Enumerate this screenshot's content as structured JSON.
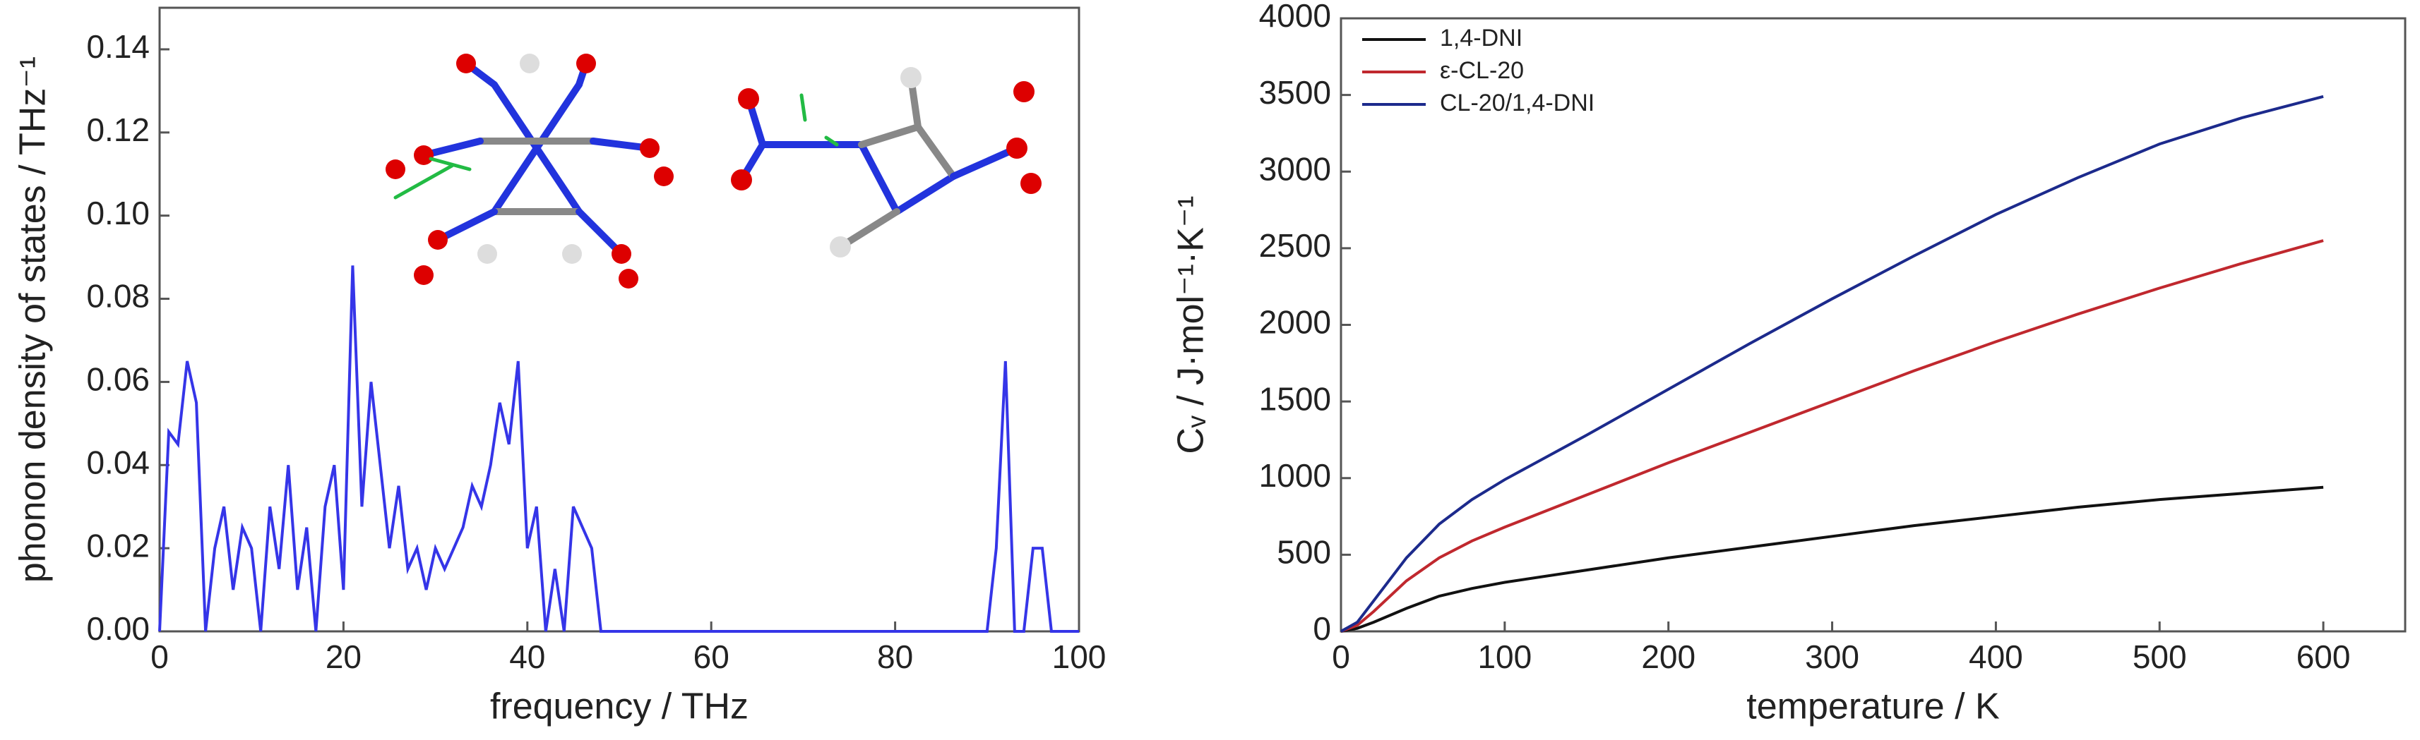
{
  "chart_data": [
    {
      "type": "line",
      "xlabel": "frequency / THz",
      "ylabel": "phonon density of states / THz⁻¹",
      "x": [
        0,
        1,
        2,
        3,
        4,
        5,
        6,
        7,
        8,
        9,
        10,
        11,
        12,
        13,
        14,
        15,
        16,
        17,
        18,
        19,
        20,
        21,
        22,
        23,
        24,
        25,
        26,
        27,
        28,
        29,
        30,
        31,
        32,
        33,
        34,
        35,
        36,
        37,
        38,
        39,
        40,
        41,
        42,
        43,
        44,
        45,
        46,
        47,
        48,
        49,
        50,
        51,
        52,
        53,
        54,
        55,
        56,
        57,
        58,
        59,
        60,
        61,
        62,
        63,
        64,
        65,
        66,
        67,
        68,
        69,
        70,
        71,
        72,
        73,
        74,
        75,
        76,
        77,
        78,
        79,
        80,
        81,
        82,
        83,
        84,
        85,
        86,
        87,
        88,
        89,
        90,
        91,
        92,
        93,
        94,
        95,
        96,
        97,
        98,
        99,
        100
      ],
      "values": [
        0.0,
        0.048,
        0.045,
        0.065,
        0.055,
        0.0,
        0.02,
        0.03,
        0.01,
        0.025,
        0.02,
        0.0,
        0.03,
        0.015,
        0.04,
        0.01,
        0.025,
        0.0,
        0.03,
        0.04,
        0.01,
        0.088,
        0.03,
        0.06,
        0.04,
        0.02,
        0.035,
        0.015,
        0.02,
        0.01,
        0.02,
        0.015,
        0.02,
        0.025,
        0.035,
        0.03,
        0.04,
        0.055,
        0.045,
        0.065,
        0.02,
        0.03,
        0.0,
        0.015,
        0.0,
        0.03,
        0.025,
        0.02,
        0.0,
        0,
        0,
        0,
        0,
        0,
        0,
        0,
        0,
        0,
        0,
        0,
        0,
        0,
        0,
        0,
        0,
        0,
        0,
        0,
        0,
        0,
        0,
        0,
        0,
        0,
        0,
        0,
        0,
        0,
        0,
        0,
        0,
        0,
        0,
        0,
        0,
        0,
        0,
        0,
        0,
        0,
        0,
        0.02,
        0.065,
        0.0,
        0,
        0.02,
        0.02,
        0,
        0,
        0,
        0
      ],
      "color": "#3535e8",
      "xlim": [
        0,
        100
      ],
      "xticks": [
        0,
        20,
        40,
        60,
        80,
        100
      ],
      "ylim": [
        0,
        0.15
      ],
      "yticks": [
        {
          "value": 0,
          "label": "0.00"
        },
        {
          "value": 0.02,
          "label": "0.02"
        },
        {
          "value": 0.04,
          "label": "0.04"
        },
        {
          "value": 0.06,
          "label": "0.06"
        },
        {
          "value": 0.08,
          "label": "0.08"
        },
        {
          "value": 0.1,
          "label": "0.10"
        },
        {
          "value": 0.12,
          "label": "0.12"
        },
        {
          "value": 0.14,
          "label": "0.14"
        }
      ],
      "grid": false
    },
    {
      "type": "line",
      "xlabel": "temperature / K",
      "ylabel": "Cᵥ / J·mol⁻¹·K⁻¹",
      "x": [
        0,
        10,
        20,
        40,
        60,
        80,
        100,
        150,
        200,
        250,
        300,
        350,
        400,
        450,
        500,
        550,
        600
      ],
      "series": [
        {
          "name": "1,4-DNI",
          "color": "#111111",
          "values": [
            0,
            20,
            60,
            150,
            230,
            280,
            320,
            400,
            480,
            550,
            620,
            690,
            750,
            810,
            860,
            900,
            940
          ]
        },
        {
          "name": "ε-CL-20",
          "color": "#c0282e",
          "values": [
            0,
            40,
            130,
            330,
            480,
            590,
            680,
            890,
            1100,
            1300,
            1500,
            1700,
            1890,
            2070,
            2240,
            2400,
            2550
          ]
        },
        {
          "name": "CL-20/1,4-DNI",
          "color": "#1c2a8c",
          "values": [
            0,
            60,
            200,
            480,
            700,
            860,
            990,
            1280,
            1580,
            1880,
            2170,
            2450,
            2720,
            2960,
            3180,
            3350,
            3490
          ]
        }
      ],
      "xlim": [
        0,
        650
      ],
      "xticks": [
        0,
        100,
        200,
        300,
        400,
        500,
        600
      ],
      "ylim": [
        0,
        4000
      ],
      "yticks": [
        0,
        500,
        1000,
        1500,
        2000,
        2500,
        3000,
        3500,
        4000
      ],
      "legend": "upper left",
      "grid": false
    }
  ]
}
